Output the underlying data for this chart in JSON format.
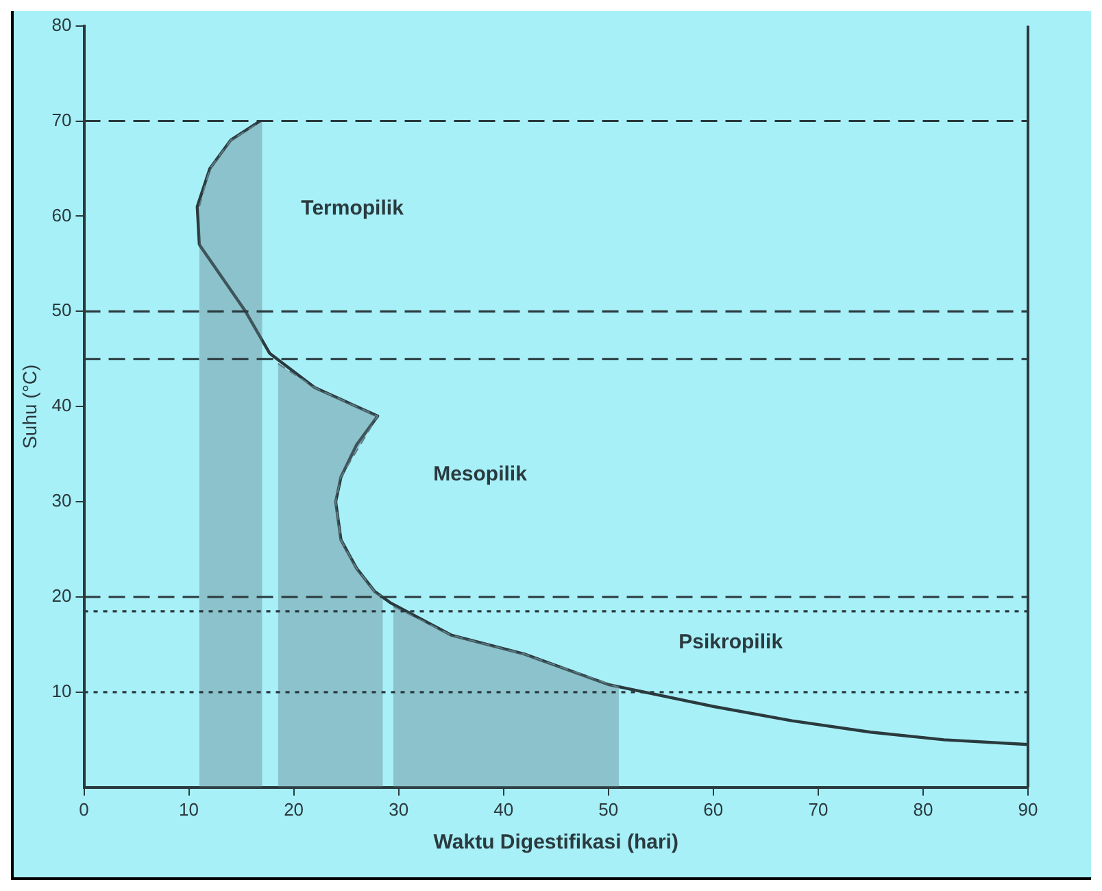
{
  "chart_data": {
    "type": "line",
    "xlabel": "Waktu Digestifikasi (hari)",
    "ylabel": "Suhu (°C)",
    "xlim": [
      0,
      90
    ],
    "xticks": [
      0,
      10,
      20,
      30,
      40,
      50,
      60,
      70,
      80,
      90
    ],
    "ylim": [
      0,
      80
    ],
    "yticks": [
      10,
      20,
      30,
      40,
      50,
      60,
      70,
      80
    ],
    "marker": "none",
    "series": [
      {
        "type": "area",
        "color": "#5e7e86",
        "x": [
          11,
          12,
          14,
          17
        ],
        "values": [
          61,
          65,
          68,
          70
        ]
      },
      {
        "type": "area",
        "color": "#5e7e86",
        "x": [
          18.5,
          22,
          25,
          28,
          24.5,
          24,
          24.5,
          26,
          27.7,
          28.5
        ],
        "values": [
          44.5,
          42,
          40.5,
          39,
          32.6,
          30,
          26,
          23,
          20.6,
          20
        ]
      },
      {
        "type": "area",
        "color": "#5e7e86",
        "x": [
          29.5,
          35,
          42,
          51
        ],
        "values": [
          19,
          16,
          14,
          10.5
        ]
      },
      {
        "type": "line",
        "color": "#2a3a3e",
        "x": [
          11,
          15.4,
          17.7,
          22,
          28,
          26,
          24.5,
          24,
          24.5,
          26,
          27.7,
          29.2,
          35,
          42,
          50,
          60,
          67.5,
          75,
          82,
          90
        ],
        "values": [
          57,
          50,
          45.6,
          42,
          39,
          36,
          32.6,
          30,
          26,
          23,
          20.6,
          19.4,
          16,
          14,
          10.8,
          8.5,
          7,
          5.8,
          5,
          4.5
        ]
      },
      {
        "type": "line",
        "color": "#2a3a3e",
        "x": [
          11,
          10.8,
          12,
          14,
          16.8
        ],
        "values": [
          57,
          61,
          65,
          68,
          70
        ]
      }
    ],
    "ref_lines": [
      {
        "axis": "y",
        "value": 70,
        "line_style": "dashed",
        "color": "#2a3a3e"
      },
      {
        "axis": "y",
        "value": 50,
        "line_style": "dashed",
        "color": "#2a3a3e"
      },
      {
        "axis": "y",
        "value": 45,
        "line_style": "dashed",
        "color": "#2a3a3e"
      },
      {
        "axis": "y",
        "value": 20,
        "line_style": "dashed",
        "color": "#2a3a3e"
      },
      {
        "axis": "y",
        "value": 18.5,
        "line_style": "dotted",
        "color": "#2a3a3e"
      },
      {
        "axis": "y",
        "value": 10,
        "line_style": "dotted",
        "color": "#2a3a3e"
      }
    ],
    "annotations": [
      "Termopilik",
      "Mesopilik",
      "Psikropilik"
    ]
  }
}
